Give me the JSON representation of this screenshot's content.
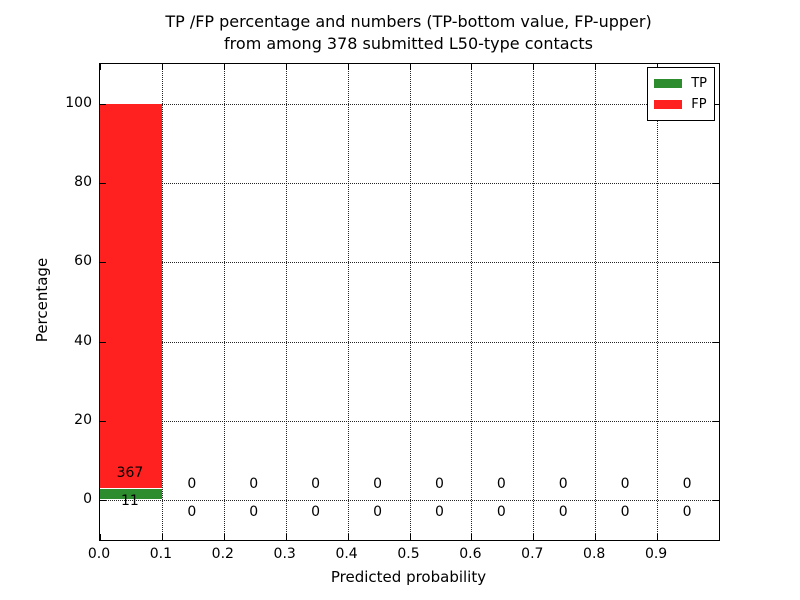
{
  "figure": {
    "background": "#ffffff",
    "text_color": "#000000"
  },
  "chart_data": {
    "type": "bar",
    "stacked": true,
    "title_line1": "TP /FP percentage and numbers (TP-bottom value, FP-upper)",
    "title_line2": "from among 378 submitted L50-type contacts",
    "xlabel": "Predicted probability",
    "ylabel": "Percentage",
    "total_contacts": 378,
    "xlim": [
      0.0,
      1.0
    ],
    "ylim": [
      -10,
      110
    ],
    "xticks": [
      0.0,
      0.1,
      0.2,
      0.3,
      0.4,
      0.5,
      0.6,
      0.7,
      0.8,
      0.9
    ],
    "yticks": [
      0,
      20,
      40,
      60,
      80,
      100
    ],
    "grid_style": "dotted",
    "legend_position": "upper right",
    "series": [
      {
        "name": "TP",
        "color": "#2d8c2d"
      },
      {
        "name": "FP",
        "color": "#ff2020"
      }
    ],
    "bins": [
      {
        "x_start": 0.0,
        "x_end": 0.1,
        "tp": 11,
        "fp": 367
      },
      {
        "x_start": 0.1,
        "x_end": 0.2,
        "tp": 0,
        "fp": 0
      },
      {
        "x_start": 0.2,
        "x_end": 0.3,
        "tp": 0,
        "fp": 0
      },
      {
        "x_start": 0.3,
        "x_end": 0.4,
        "tp": 0,
        "fp": 0
      },
      {
        "x_start": 0.4,
        "x_end": 0.5,
        "tp": 0,
        "fp": 0
      },
      {
        "x_start": 0.5,
        "x_end": 0.6,
        "tp": 0,
        "fp": 0
      },
      {
        "x_start": 0.6,
        "x_end": 0.7,
        "tp": 0,
        "fp": 0
      },
      {
        "x_start": 0.7,
        "x_end": 0.8,
        "tp": 0,
        "fp": 0
      },
      {
        "x_start": 0.8,
        "x_end": 0.9,
        "tp": 0,
        "fp": 0
      },
      {
        "x_start": 0.9,
        "x_end": 1.0,
        "tp": 0,
        "fp": 0
      }
    ]
  }
}
